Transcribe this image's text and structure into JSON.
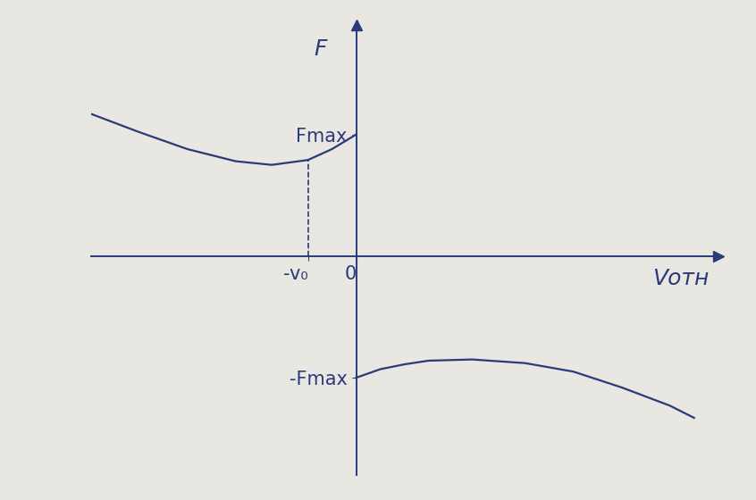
{
  "chart_data": {
    "type": "line",
    "x_label": "Vотн",
    "y_label": "F",
    "series": [
      {
        "x": [
          -5.5,
          -4.5,
          -3.5,
          -2.5,
          -1.75,
          -1,
          -0.5,
          0
        ],
        "values": [
          1.17,
          1.02,
          0.88,
          0.78,
          0.75,
          0.79,
          0.88,
          1.0
        ],
        "color": "#2a3a7a"
      },
      {
        "x": [
          0,
          0.5,
          1,
          1.5,
          2.4,
          3.5,
          4.5,
          5.5,
          6.5,
          7.0
        ],
        "values": [
          -1.0,
          -0.93,
          -0.89,
          -0.86,
          -0.85,
          -0.88,
          -0.95,
          -1.08,
          -1.23,
          -1.33
        ],
        "color": "#2a3a7a"
      }
    ],
    "xlim": [
      -5.5,
      7.5
    ],
    "ylim": [
      -1.8,
      1.9
    ],
    "xticks": [
      {
        "value": -1,
        "label": "-v₀"
      },
      0
    ],
    "yticks": [
      {
        "value": 1,
        "label": "Fmax"
      },
      {
        "value": -1,
        "label": "-Fmax"
      }
    ],
    "grid": false
  }
}
